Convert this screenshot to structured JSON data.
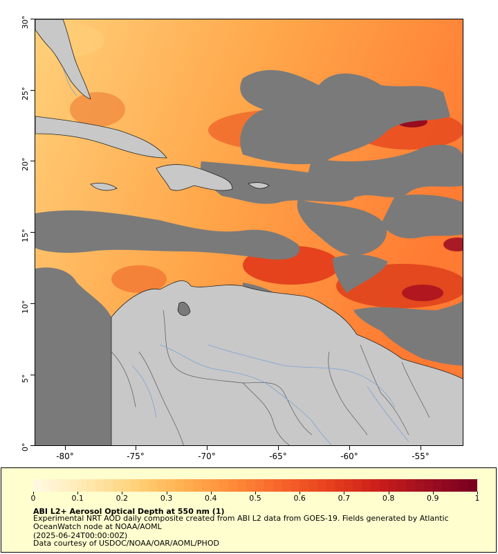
{
  "map": {
    "lat_ticks": [
      "30°",
      "25°",
      "20°",
      "15°",
      "10°",
      "5°",
      "0°"
    ],
    "lon_ticks": [
      "-80°",
      "-75°",
      "-70°",
      "-65°",
      "-60°",
      "-55°"
    ],
    "colors": {
      "cloud_nodata": "#7a7a7a",
      "land": "#c8c8c8",
      "rivers": "#7aa3d6",
      "borders": "#555555",
      "coast": "#222222"
    }
  },
  "colorbar": {
    "min": 0,
    "max": 1,
    "tick_labels": [
      "0",
      "0.1",
      "0.2",
      "0.3",
      "0.4",
      "0.5",
      "0.6",
      "0.7",
      "0.8",
      "0.9",
      "1"
    ],
    "colors": [
      "#fff8e0",
      "#ffe9b0",
      "#ffd27a",
      "#ffb14f",
      "#ff8c3a",
      "#f7652b",
      "#e8421e",
      "#cc1f1a",
      "#a00f20",
      "#7a0020"
    ]
  },
  "legend": {
    "title": "ABI L2+ Aerosol Optical Depth at 550 nm (1)",
    "description": "Experimental NRT AOD daily composite created from ABI L2 data from GOES-19. Fields generated by Atlantic OceanWatch node at NOAA/AOML",
    "timestamp": "(2025-06-24T00:00:00Z)",
    "credit": "Data courtesy of USDOC/NOAA/OAR/AOML/PHOD"
  }
}
